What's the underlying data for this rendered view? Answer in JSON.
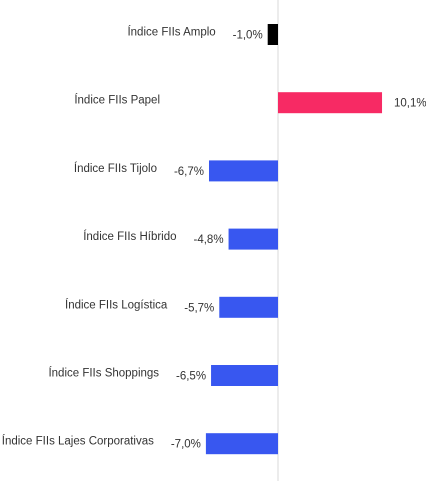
{
  "chart_data": {
    "type": "bar",
    "orientation": "horizontal",
    "title": "",
    "xlabel": "",
    "ylabel": "",
    "grid": false,
    "legend": "none",
    "xlim": [
      -10.0,
      15.0
    ],
    "categories": [
      "Índice FIIs Amplo",
      "Índice FIIs Papel",
      "Índice FIIs Tijolo",
      "Índice FIIs Híbrido",
      "Índice FIIs Logística",
      "Índice FIIs Shoppings",
      "Índice FIIs Lajes Corporativas"
    ],
    "values": [
      -1.0,
      10.1,
      -6.7,
      -4.8,
      -5.7,
      -6.5,
      -7.0
    ],
    "value_labels": [
      "-1,0%",
      "10,1%",
      "-6,7%",
      "-4,8%",
      "-5,7%",
      "-6,5%",
      "-7,0%"
    ],
    "bar_colors": [
      "#000000",
      "#f72a64",
      "#3857f0",
      "#3857f0",
      "#3857f0",
      "#3857f0",
      "#3857f0"
    ],
    "axis_line_color": "#d9d9d9"
  }
}
